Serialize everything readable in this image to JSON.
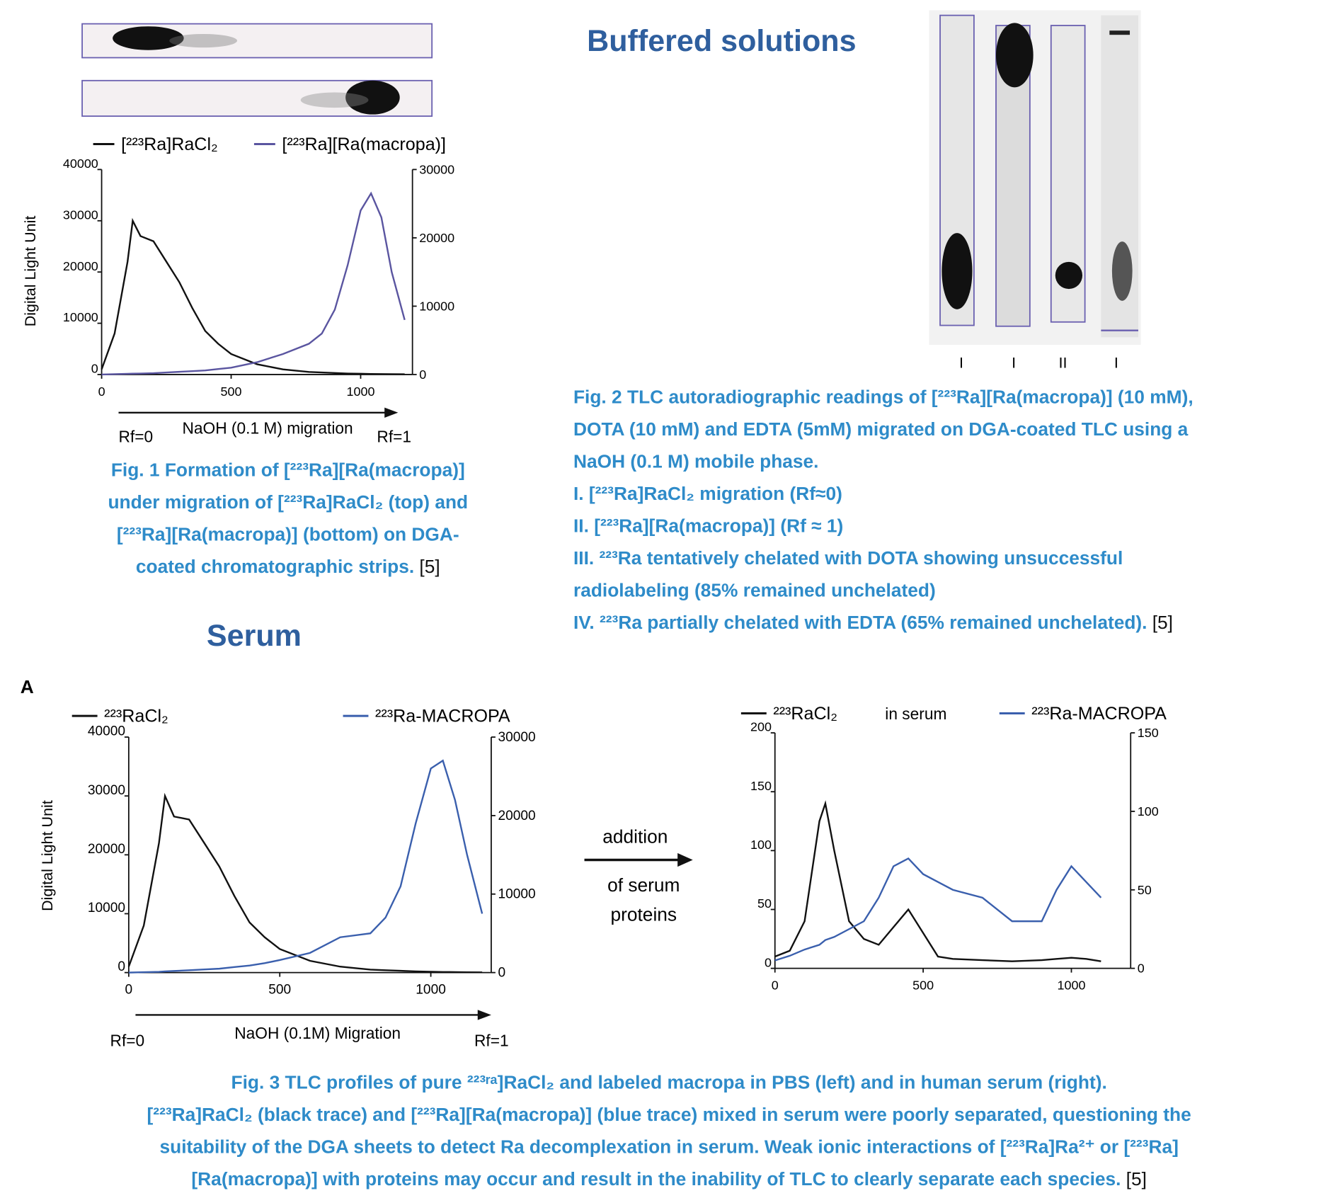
{
  "headings": {
    "buffered": "Buffered solutions",
    "serum": "Serum"
  },
  "fig1_caption": {
    "lines": [
      "Fig. 1 Formation of [²²³Ra][Ra(macropa)]",
      "under migration of [²²³Ra]RaCl₂ (top) and",
      "[²²³Ra][Ra(macropa)] (bottom) on DGA-",
      "coated chromatographic strips."
    ],
    "ref": "[5]"
  },
  "fig2_lane_labels": [
    "I",
    "I",
    "II",
    "I"
  ],
  "fig2_caption": {
    "lines": [
      "Fig. 2 TLC autoradiographic readings of [²²³Ra][Ra(macropa)] (10 mM),",
      "DOTA (10 mM) and EDTA (5mM) migrated on DGA-coated TLC using a",
      "NaOH (0.1 M) mobile phase.",
      "I. [²²³Ra]RaCl₂ migration (Rf≈0)",
      "II. [²²³Ra][Ra(macropa)] (Rf ≈ 1)",
      "III. ²²³Ra tentatively chelated with DOTA showing unsuccessful",
      "radiolabeling (85% remained unchelated)",
      "IV. ²²³Ra partially chelated with EDTA (65% remained unchelated)."
    ],
    "ref": "[5]"
  },
  "fig3_arrow_text": [
    "addition",
    "of serum",
    "proteins"
  ],
  "fig3_caption": {
    "lines": [
      "Fig. 3 TLC profiles of pure ²²³ʳᵃ]RaCl₂ and labeled macropa in PBS (left) and in human serum (right).",
      "[²²³Ra]RaCl₂ (black trace) and [²²³Ra][Ra(macropa)] (blue trace) mixed in serum were poorly separated, questioning the",
      "suitability of the DGA sheets to detect Ra decomplexation in serum. Weak ionic interactions of [²²³Ra]Ra²⁺ or [²²³Ra]",
      "[Ra(macropa)] with proteins may occur and result in the inability of TLC to clearly separate each species."
    ],
    "ref": "[5]"
  },
  "chart_data": [
    {
      "type": "line",
      "ylabel": "Digital Light Unit",
      "xlabel": "NaOH (0.1 M) migration",
      "annotations": [
        "Rf=0",
        "Rf=1"
      ],
      "x": [
        0,
        50,
        100,
        120,
        150,
        200,
        250,
        300,
        350,
        400,
        450,
        500,
        600,
        700,
        800,
        850,
        900,
        950,
        1000,
        1040,
        1080,
        1120,
        1170
      ],
      "xlim": [
        0,
        1200
      ],
      "xticks": [
        0,
        500,
        1000
      ],
      "ylim": [
        0,
        40000
      ],
      "yticks": [
        0,
        10000,
        20000,
        30000,
        40000
      ],
      "y2lim": [
        0,
        30000
      ],
      "y2ticks": [
        0,
        10000,
        20000,
        30000
      ],
      "series": [
        {
          "name": "[²²³Ra]RaCl₂",
          "color": "#111111",
          "values": [
            1000,
            8000,
            22000,
            30000,
            27000,
            26000,
            22000,
            18000,
            13000,
            8500,
            6000,
            4000,
            2000,
            1000,
            500,
            400,
            300,
            200,
            150,
            100,
            80,
            60,
            50
          ]
        },
        {
          "name": "[²²³Ra][Ra(macropa)]",
          "color": "#5a55a0",
          "axis": "y2",
          "values": [
            0,
            50,
            100,
            120,
            150,
            200,
            300,
            400,
            500,
            600,
            800,
            1000,
            1800,
            3000,
            4500,
            6000,
            9500,
            16000,
            24000,
            26500,
            23000,
            15000,
            8000
          ]
        }
      ]
    },
    {
      "type": "line",
      "panel_label": "A",
      "ylabel": "Digital Light Unit",
      "xlabel": "NaOH (0.1M) Migration",
      "annotations": [
        "Rf=0",
        "Rf=1"
      ],
      "x": [
        0,
        50,
        100,
        120,
        150,
        200,
        250,
        300,
        350,
        400,
        450,
        500,
        600,
        700,
        800,
        850,
        900,
        950,
        1000,
        1040,
        1080,
        1120,
        1170
      ],
      "xlim": [
        0,
        1200
      ],
      "xticks": [
        0,
        500,
        1000
      ],
      "ylim": [
        0,
        40000
      ],
      "yticks": [
        0,
        10000,
        20000,
        30000,
        40000
      ],
      "y2lim": [
        0,
        30000
      ],
      "y2ticks": [
        0,
        10000,
        20000,
        30000
      ],
      "series": [
        {
          "name": "²²³RaCl₂",
          "color": "#111111",
          "values": [
            1000,
            8000,
            22000,
            30000,
            26500,
            26000,
            22000,
            18000,
            13000,
            8500,
            6000,
            4000,
            2000,
            1000,
            500,
            400,
            300,
            200,
            150,
            100,
            80,
            60,
            50
          ]
        },
        {
          "name": "²²³Ra-MACROPA",
          "color": "#3a5fad",
          "axis": "y2",
          "values": [
            0,
            50,
            100,
            150,
            200,
            300,
            400,
            500,
            700,
            900,
            1200,
            1600,
            2500,
            4500,
            5000,
            7000,
            11000,
            19000,
            26000,
            27000,
            22000,
            15000,
            7500
          ]
        }
      ]
    },
    {
      "type": "line",
      "annotations": [
        "in serum"
      ],
      "x": [
        0,
        50,
        100,
        150,
        170,
        200,
        250,
        300,
        350,
        400,
        450,
        500,
        550,
        600,
        700,
        800,
        900,
        950,
        1000,
        1050,
        1100
      ],
      "xlim": [
        0,
        1200
      ],
      "xticks": [
        0,
        500,
        1000
      ],
      "ylim": [
        0,
        200
      ],
      "yticks": [
        0,
        50,
        100,
        150,
        200
      ],
      "y2lim": [
        0,
        150
      ],
      "y2ticks": [
        0,
        50,
        100,
        150
      ],
      "series": [
        {
          "name": "²²³RaCl₂",
          "color": "#111111",
          "values": [
            10,
            15,
            40,
            125,
            140,
            100,
            40,
            25,
            20,
            35,
            50,
            30,
            10,
            8,
            7,
            6,
            7,
            8,
            9,
            8,
            6
          ]
        },
        {
          "name": "²²³Ra-MACROPA",
          "color": "#3a5fad",
          "axis": "y2",
          "values": [
            5,
            8,
            12,
            15,
            18,
            20,
            25,
            30,
            45,
            65,
            70,
            60,
            55,
            50,
            45,
            30,
            30,
            50,
            65,
            55,
            45
          ]
        }
      ]
    }
  ]
}
